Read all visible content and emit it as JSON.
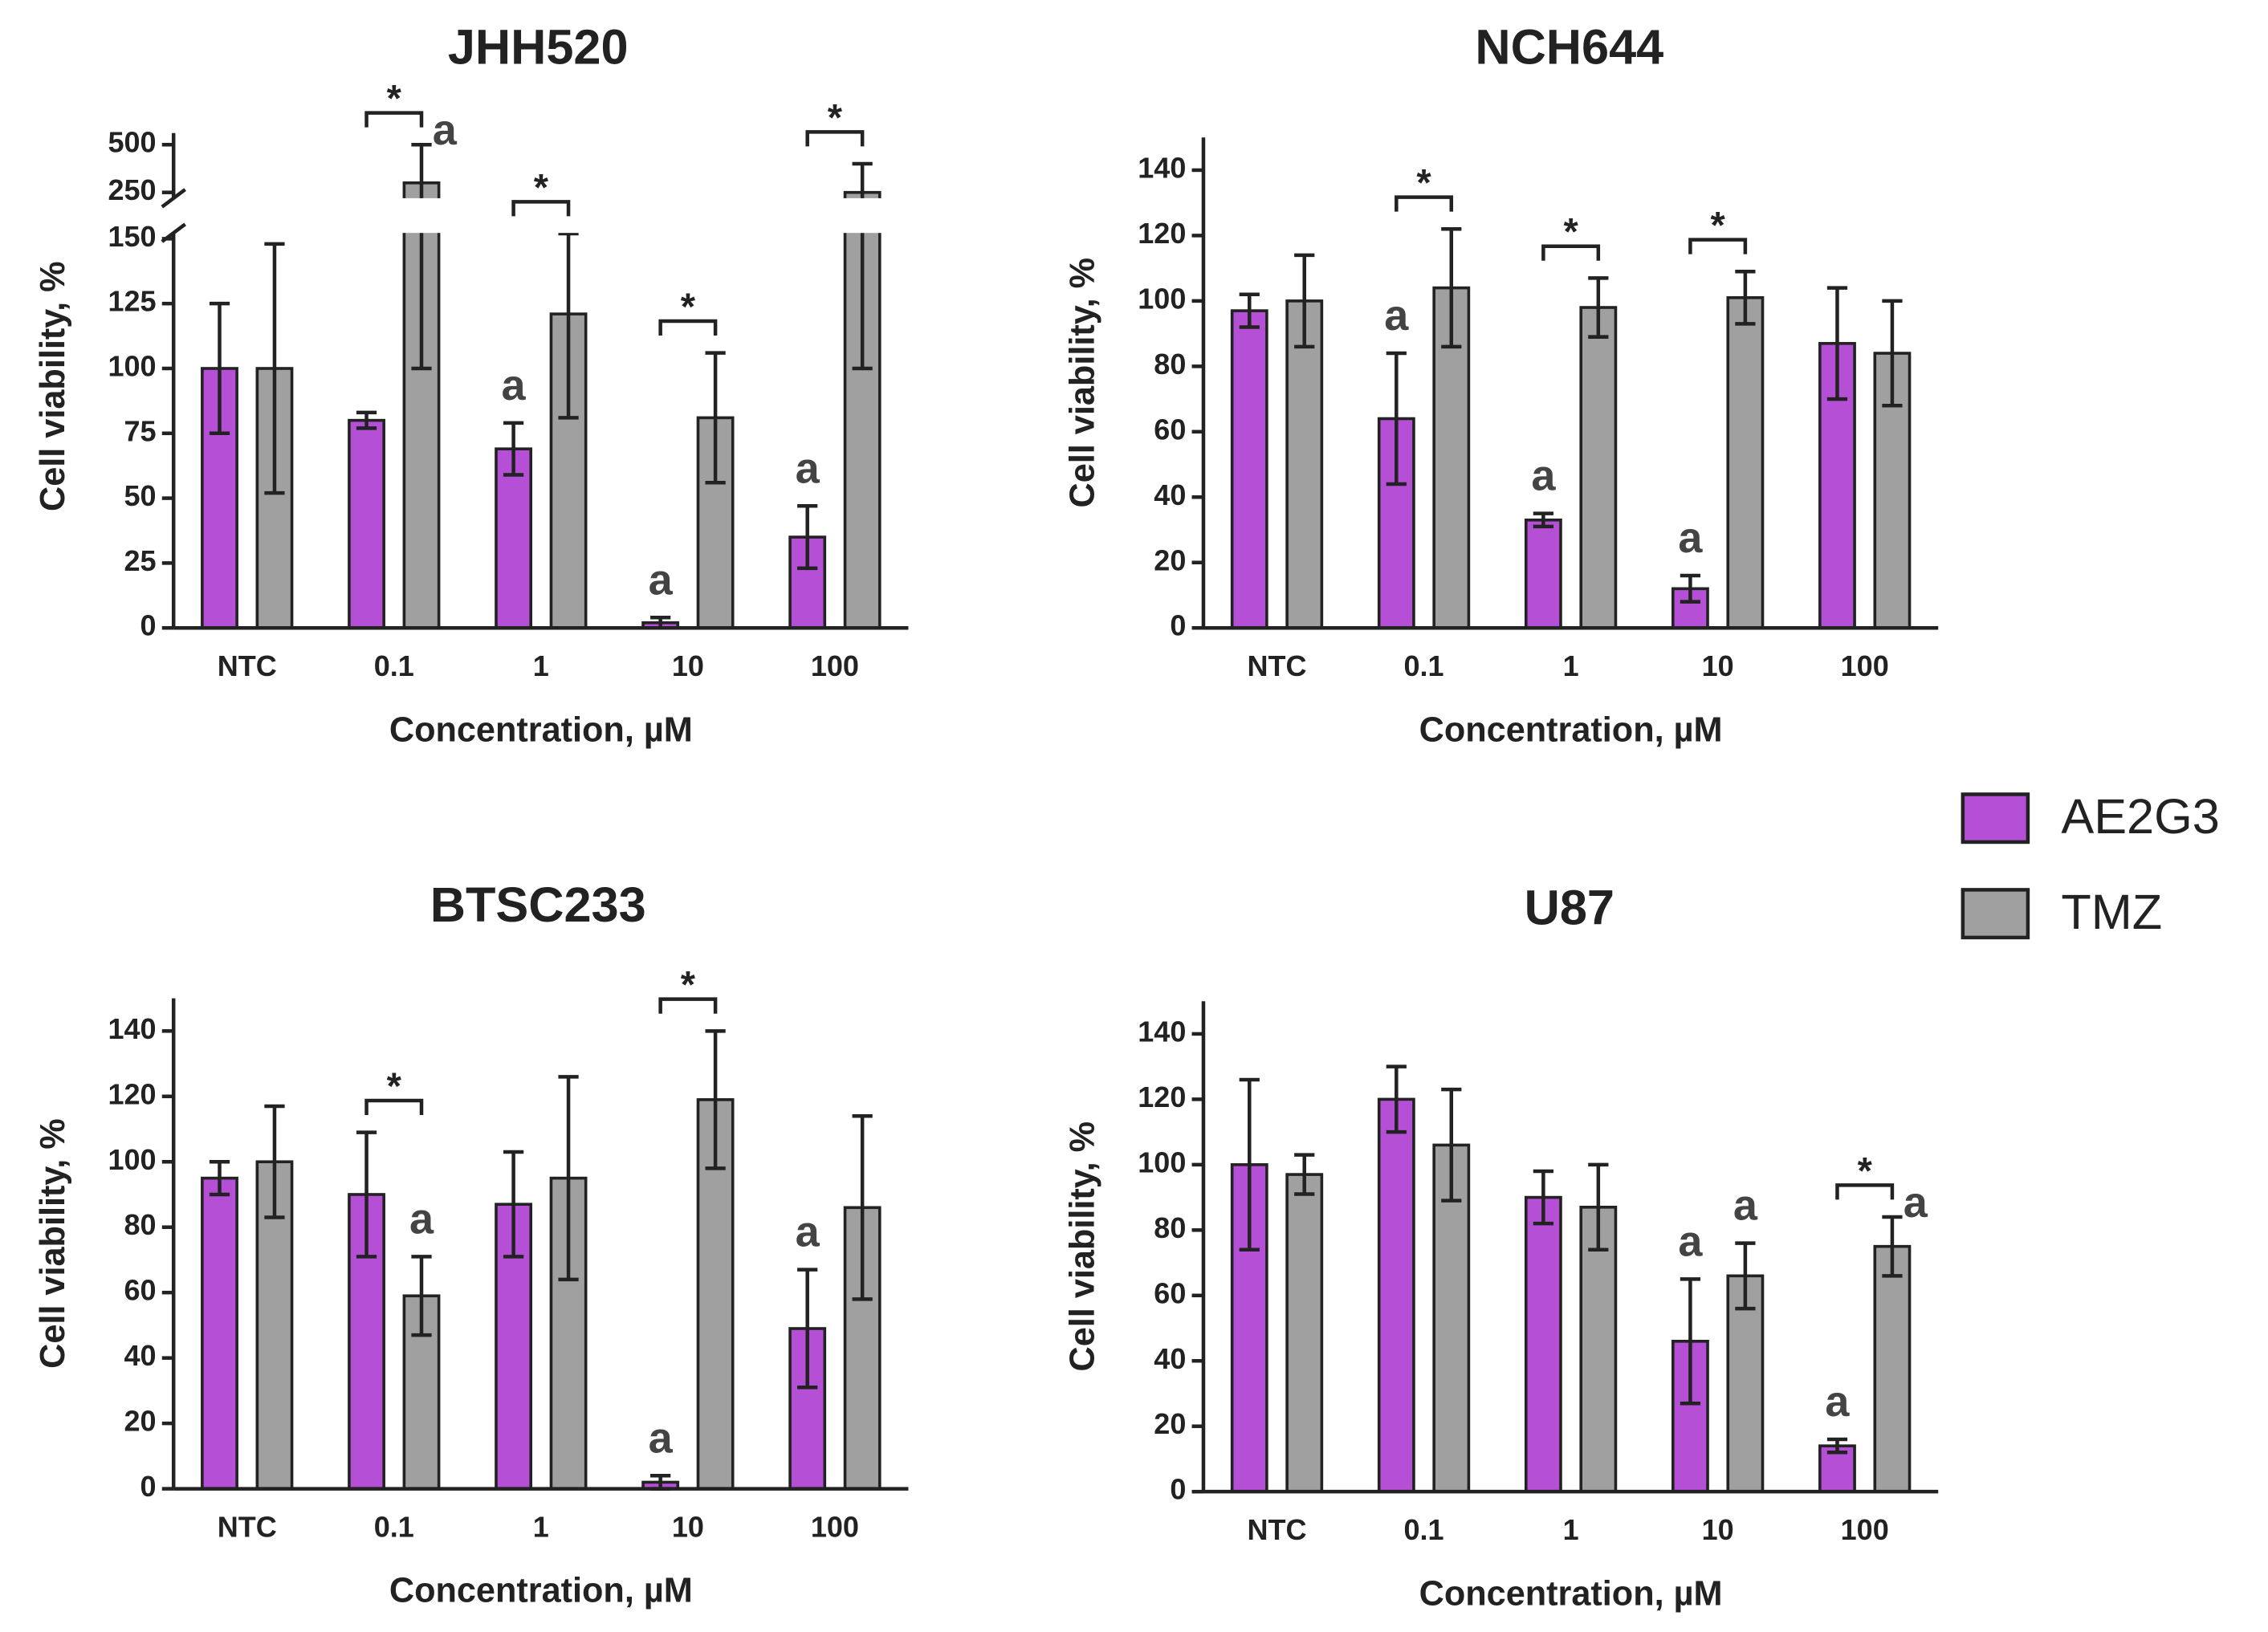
{
  "chart_data": [
    {
      "type": "bar",
      "title": "JHH520",
      "xlabel": "Concentration, µM",
      "ylabel": "Cell viability, %",
      "categories": [
        "NTC",
        "0.1",
        "1",
        "10",
        "100"
      ],
      "series": [
        {
          "name": "AE2G3",
          "color": "#b44fd6",
          "values": [
            100,
            80,
            69,
            2,
            35
          ],
          "errors": [
            25,
            3,
            10,
            2,
            12
          ],
          "markers": [
            null,
            null,
            "a",
            "a",
            "a"
          ]
        },
        {
          "name": "TMZ",
          "color": "#a0a0a0",
          "values": [
            100,
            300,
            121,
            81,
            250
          ],
          "errors": [
            48,
            200,
            40,
            25,
            150
          ],
          "markers": [
            null,
            "a",
            null,
            null,
            null
          ]
        }
      ],
      "comparisons": [
        null,
        "*",
        "*",
        "*",
        "*"
      ],
      "ylim": [
        0,
        500
      ],
      "ybreak": [
        150,
        250
      ],
      "yticks": [
        0,
        25,
        50,
        75,
        100,
        125,
        150,
        250,
        500
      ]
    },
    {
      "type": "bar",
      "title": "NCH644",
      "xlabel": "Concentration, µM",
      "ylabel": "Cell viability, %",
      "categories": [
        "NTC",
        "0.1",
        "1",
        "10",
        "100"
      ],
      "series": [
        {
          "name": "AE2G3",
          "color": "#b44fd6",
          "values": [
            97,
            64,
            33,
            12,
            87
          ],
          "errors": [
            5,
            20,
            2,
            4,
            17
          ],
          "markers": [
            null,
            "a",
            "a",
            "a",
            null
          ]
        },
        {
          "name": "TMZ",
          "color": "#a0a0a0",
          "values": [
            100,
            104,
            98,
            101,
            84
          ],
          "errors": [
            14,
            18,
            9,
            8,
            16
          ],
          "markers": [
            null,
            null,
            null,
            null,
            null
          ]
        }
      ],
      "comparisons": [
        null,
        "*",
        "*",
        "*",
        null
      ],
      "ylim": [
        0,
        150
      ],
      "yticks": [
        0,
        20,
        40,
        60,
        80,
        100,
        120,
        140
      ]
    },
    {
      "type": "bar",
      "title": "BTSC233",
      "xlabel": "Concentration, µM",
      "ylabel": "Cell viability, %",
      "categories": [
        "NTC",
        "0.1",
        "1",
        "10",
        "100"
      ],
      "series": [
        {
          "name": "AE2G3",
          "color": "#b44fd6",
          "values": [
            95,
            90,
            87,
            2,
            49
          ],
          "errors": [
            5,
            19,
            16,
            2,
            18
          ],
          "markers": [
            null,
            null,
            null,
            "a",
            "a"
          ]
        },
        {
          "name": "TMZ",
          "color": "#a0a0a0",
          "values": [
            100,
            59,
            95,
            119,
            86
          ],
          "errors": [
            17,
            12,
            31,
            21,
            28
          ],
          "markers": [
            null,
            "a",
            null,
            null,
            null
          ]
        }
      ],
      "comparisons": [
        null,
        "*",
        null,
        "*",
        null
      ],
      "ylim": [
        0,
        150
      ],
      "yticks": [
        0,
        20,
        40,
        60,
        80,
        100,
        120,
        140
      ]
    },
    {
      "type": "bar",
      "title": "U87",
      "xlabel": "Concentration, µM",
      "ylabel": "Cell viability, %",
      "categories": [
        "NTC",
        "0.1",
        "1",
        "10",
        "100"
      ],
      "series": [
        {
          "name": "AE2G3",
          "color": "#b44fd6",
          "values": [
            100,
            120,
            90,
            46,
            14
          ],
          "errors": [
            26,
            10,
            8,
            19,
            2
          ],
          "markers": [
            null,
            null,
            null,
            "a",
            "a"
          ]
        },
        {
          "name": "TMZ",
          "color": "#a0a0a0",
          "values": [
            97,
            106,
            87,
            66,
            75
          ],
          "errors": [
            6,
            17,
            13,
            10,
            9
          ],
          "markers": [
            null,
            null,
            null,
            "a",
            "a"
          ]
        }
      ],
      "comparisons": [
        null,
        null,
        null,
        null,
        "*"
      ],
      "ylim": [
        0,
        150
      ],
      "yticks": [
        0,
        20,
        40,
        60,
        80,
        100,
        120,
        140
      ]
    }
  ]
}
